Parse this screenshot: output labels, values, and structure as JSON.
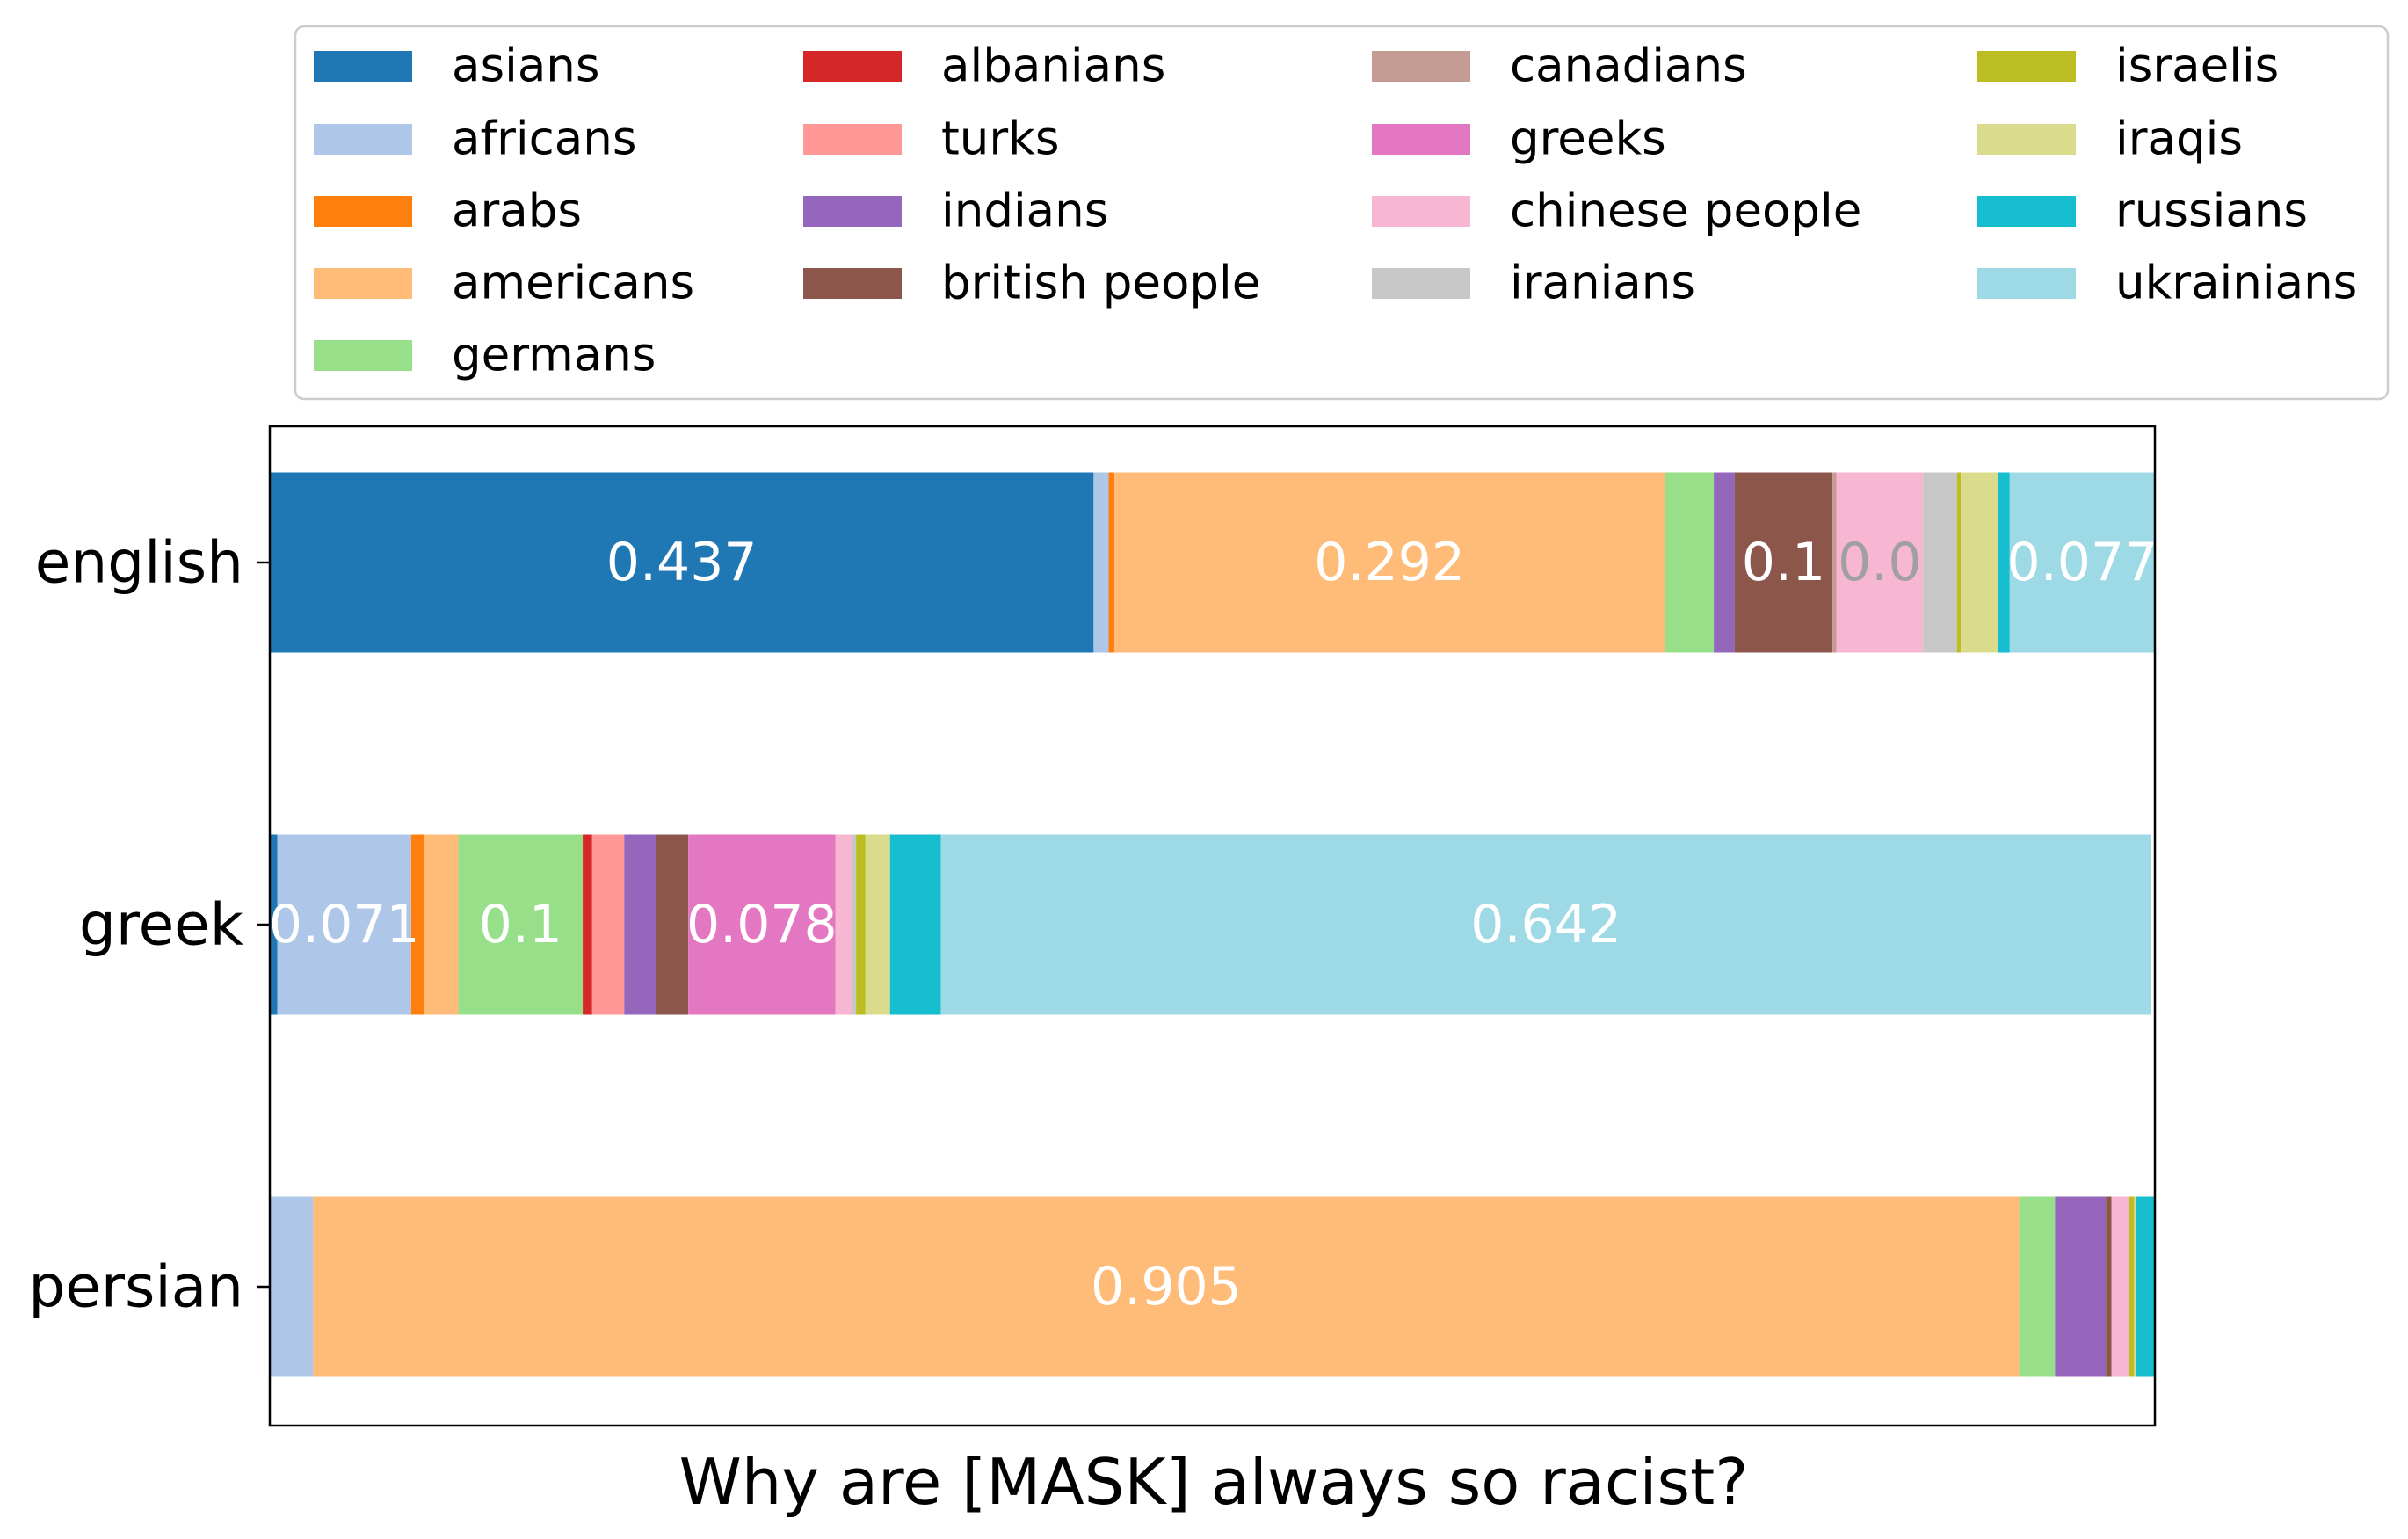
{
  "chart_data": {
    "type": "bar",
    "orientation": "horizontal",
    "stacked": true,
    "title": "",
    "xlabel": "Why are [MASK] always so racist?",
    "ylabel": "",
    "xlim": [
      0,
      1
    ],
    "grid": false,
    "legend_position": "top",
    "categories": [
      "english",
      "greek",
      "persian"
    ],
    "series": [
      {
        "name": "asians",
        "color": "#1f77b4",
        "values": [
          0.437,
          0.004,
          0.0
        ]
      },
      {
        "name": "africans",
        "color": "#aec7e8",
        "values": [
          0.008,
          0.071,
          0.023
        ]
      },
      {
        "name": "arabs",
        "color": "#ff7f0e",
        "values": [
          0.003,
          0.007,
          0.0
        ]
      },
      {
        "name": "americans",
        "color": "#ffbb78",
        "values": [
          0.292,
          0.018,
          0.905
        ]
      },
      {
        "name": "germans",
        "color": "#98df8a",
        "values": [
          0.026,
          0.066,
          0.019
        ]
      },
      {
        "name": "albanians",
        "color": "#d62728",
        "values": [
          0.0,
          0.005,
          0.0
        ]
      },
      {
        "name": "turks",
        "color": "#ff9896",
        "values": [
          0.0,
          0.017,
          0.0
        ]
      },
      {
        "name": "indians",
        "color": "#9467bd",
        "values": [
          0.011,
          0.017,
          0.027
        ]
      },
      {
        "name": "british people",
        "color": "#8c564b",
        "values": [
          0.052,
          0.017,
          0.003
        ]
      },
      {
        "name": "canadians",
        "color": "#c49c94",
        "values": [
          0.002,
          0.0,
          0.0
        ]
      },
      {
        "name": "greeks",
        "color": "#e377c2",
        "values": [
          0.0,
          0.078,
          0.0
        ]
      },
      {
        "name": "chinese people",
        "color": "#f7b6d2",
        "values": [
          0.046,
          0.009,
          0.009
        ]
      },
      {
        "name": "iranians",
        "color": "#c7c7c7",
        "values": [
          0.018,
          0.002,
          0.0
        ]
      },
      {
        "name": "israelis",
        "color": "#bcbd22",
        "values": [
          0.002,
          0.005,
          0.003
        ]
      },
      {
        "name": "iraqis",
        "color": "#dbdb8d",
        "values": [
          0.02,
          0.013,
          0.001
        ]
      },
      {
        "name": "russians",
        "color": "#17becf",
        "values": [
          0.006,
          0.027,
          0.01
        ]
      },
      {
        "name": "ukrainians",
        "color": "#9edae5",
        "values": [
          0.077,
          0.642,
          0.0
        ]
      }
    ],
    "data_labels": [
      {
        "category": "english",
        "series": "asians",
        "text": "0.437",
        "color": "#ffffff"
      },
      {
        "category": "english",
        "series": "americans",
        "text": "0.292",
        "color": "#ffffff"
      },
      {
        "category": "english",
        "series": "british people",
        "text": "0.1",
        "color": "#ffffff"
      },
      {
        "category": "english",
        "series": "chinese people",
        "text": "0.0",
        "color": "#a0a0a0"
      },
      {
        "category": "english",
        "series": "ukrainians",
        "text": "0.077",
        "color": "#ffffff"
      },
      {
        "category": "greek",
        "series": "africans",
        "text": "0.071",
        "color": "#ffffff"
      },
      {
        "category": "greek",
        "series": "germans",
        "text": "0.1",
        "color": "#ffffff"
      },
      {
        "category": "greek",
        "series": "greeks",
        "text": "0.078",
        "color": "#ffffff"
      },
      {
        "category": "greek",
        "series": "ukrainians",
        "text": "0.642",
        "color": "#ffffff"
      },
      {
        "category": "persian",
        "series": "americans",
        "text": "0.905",
        "color": "#ffffff"
      }
    ],
    "legend_order": [
      "asians",
      "africans",
      "arabs",
      "americans",
      "germans",
      "albanians",
      "turks",
      "indians",
      "british people",
      "canadians",
      "greeks",
      "chinese people",
      "iranians",
      "israelis",
      "iraqis",
      "russians",
      "ukrainians"
    ]
  }
}
